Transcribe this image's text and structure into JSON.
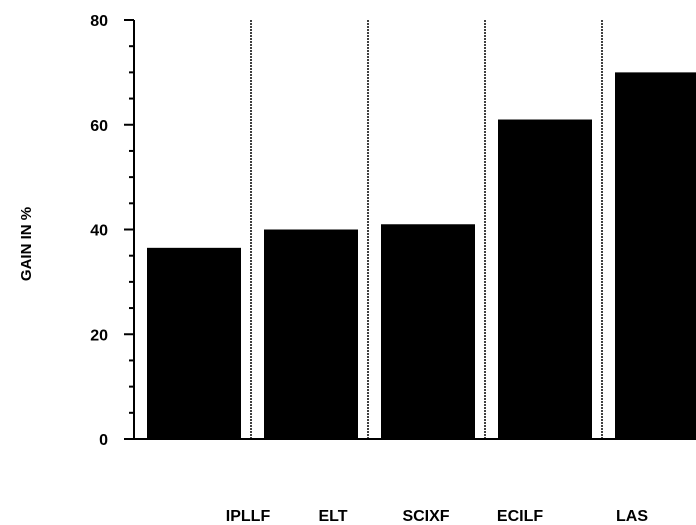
{
  "chart_data": {
    "type": "bar",
    "title": "",
    "xlabel": "",
    "ylabel": "GAIN IN %",
    "ylim": [
      0,
      80
    ],
    "yticks": [
      0,
      20,
      40,
      60,
      80
    ],
    "categories": [
      "IPLLF",
      "ELT",
      "SCIXF",
      "ECILF",
      "LAS"
    ],
    "values": [
      36.5,
      40,
      41,
      61,
      70
    ],
    "bar_color": "#000000",
    "grid": false
  }
}
